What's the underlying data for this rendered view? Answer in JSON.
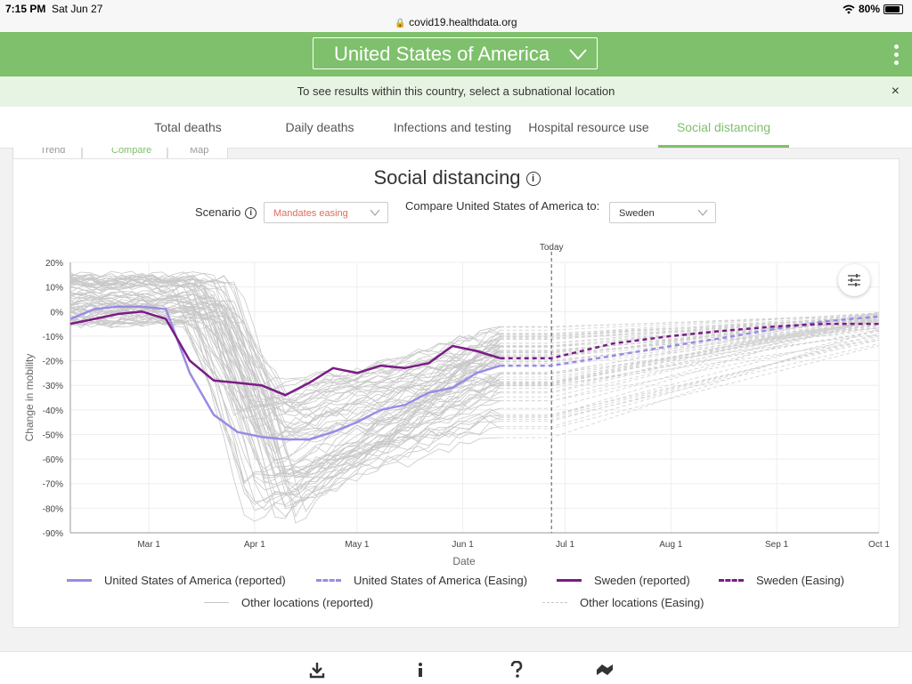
{
  "status": {
    "time": "7:15 PM",
    "date": "Sat Jun 27",
    "url": "covid19.healthdata.org",
    "battery": "80%"
  },
  "header": {
    "country": "United States of America"
  },
  "notice": {
    "text": "To see results within this country, select a subnational location",
    "close": "×"
  },
  "tabs": [
    {
      "label": "Total deaths"
    },
    {
      "label": "Daily deaths"
    },
    {
      "label": "Infections and testing"
    },
    {
      "label": "Hospital resource use"
    },
    {
      "label": "Social distancing"
    }
  ],
  "subtabs": [
    {
      "label": "Trend"
    },
    {
      "label": "Compare"
    },
    {
      "label": "Map"
    }
  ],
  "card": {
    "title": "Social distancing",
    "scenario_label": "Scenario",
    "scenario_value": "Mandates easing",
    "compare_label": "Compare United States of America to:",
    "compare_value": "Sweden",
    "info_glyph": "i"
  },
  "colors": {
    "green": "#7ec06b",
    "usa": "#9b8ae6",
    "sweden": "#7a1c86",
    "other": "#c8c8c8",
    "scenario_text": "#e06b5d"
  },
  "chart_data": {
    "type": "line",
    "today_label": "Today",
    "xlabel": "Date",
    "ylabel": "Change in mobility",
    "x_ticks": [
      "Mar 1",
      "Apr 1",
      "May 1",
      "Jun 1",
      "Jul 1",
      "Aug 1",
      "Sep 1",
      "Oct 1"
    ],
    "y_ticks": [
      "20%",
      "10%",
      "0%",
      "-10%",
      "-20%",
      "-30%",
      "-40%",
      "-50%",
      "-60%",
      "-70%",
      "-80%",
      "-90%"
    ],
    "ylim": [
      -90,
      20
    ],
    "xlim": [
      "2020-02-07",
      "2020-10-01"
    ],
    "today": "2020-06-27",
    "series": [
      {
        "name": "United States of America (reported)",
        "x": [
          "2020-02-07",
          "2020-02-14",
          "2020-02-21",
          "2020-02-28",
          "2020-03-06",
          "2020-03-13",
          "2020-03-20",
          "2020-03-27",
          "2020-04-03",
          "2020-04-10",
          "2020-04-17",
          "2020-04-24",
          "2020-05-01",
          "2020-05-08",
          "2020-05-15",
          "2020-05-22",
          "2020-05-29",
          "2020-06-05",
          "2020-06-12"
        ],
        "y": [
          -3,
          1,
          2,
          2,
          1,
          -25,
          -42,
          -49,
          -51,
          -52,
          -52,
          -49,
          -45,
          -40,
          -38,
          -33,
          -31,
          -25,
          -22
        ]
      },
      {
        "name": "United States of America (Easing)",
        "x": [
          "2020-06-12",
          "2020-06-27",
          "2020-07-15",
          "2020-08-01",
          "2020-08-15",
          "2020-09-01",
          "2020-09-15",
          "2020-10-01"
        ],
        "y": [
          -22,
          -22,
          -18,
          -14,
          -11,
          -7,
          -4,
          -2
        ]
      },
      {
        "name": "Sweden (reported)",
        "x": [
          "2020-02-07",
          "2020-02-14",
          "2020-02-21",
          "2020-02-28",
          "2020-03-06",
          "2020-03-13",
          "2020-03-20",
          "2020-03-27",
          "2020-04-03",
          "2020-04-10",
          "2020-04-17",
          "2020-04-24",
          "2020-05-01",
          "2020-05-08",
          "2020-05-15",
          "2020-05-22",
          "2020-05-29",
          "2020-06-05",
          "2020-06-12"
        ],
        "y": [
          -5,
          -3,
          -1,
          0,
          -3,
          -20,
          -28,
          -29,
          -30,
          -34,
          -29,
          -23,
          -25,
          -22,
          -23,
          -21,
          -14,
          -16,
          -19
        ]
      },
      {
        "name": "Sweden (Easing)",
        "x": [
          "2020-06-12",
          "2020-06-27",
          "2020-07-15",
          "2020-08-01",
          "2020-08-15",
          "2020-09-01",
          "2020-09-15",
          "2020-10-01"
        ],
        "y": [
          -19,
          -19,
          -13,
          -10,
          -8,
          -6,
          -5,
          -5
        ]
      }
    ],
    "legend": [
      {
        "label": "United States of America (reported)"
      },
      {
        "label": "United States of America (Easing)"
      },
      {
        "label": "Sweden (reported)"
      },
      {
        "label": "Sweden (Easing)"
      },
      {
        "label": "Other locations (reported)"
      },
      {
        "label": "Other locations (Easing)"
      }
    ],
    "legend_placement": "bottom",
    "grid": true
  }
}
